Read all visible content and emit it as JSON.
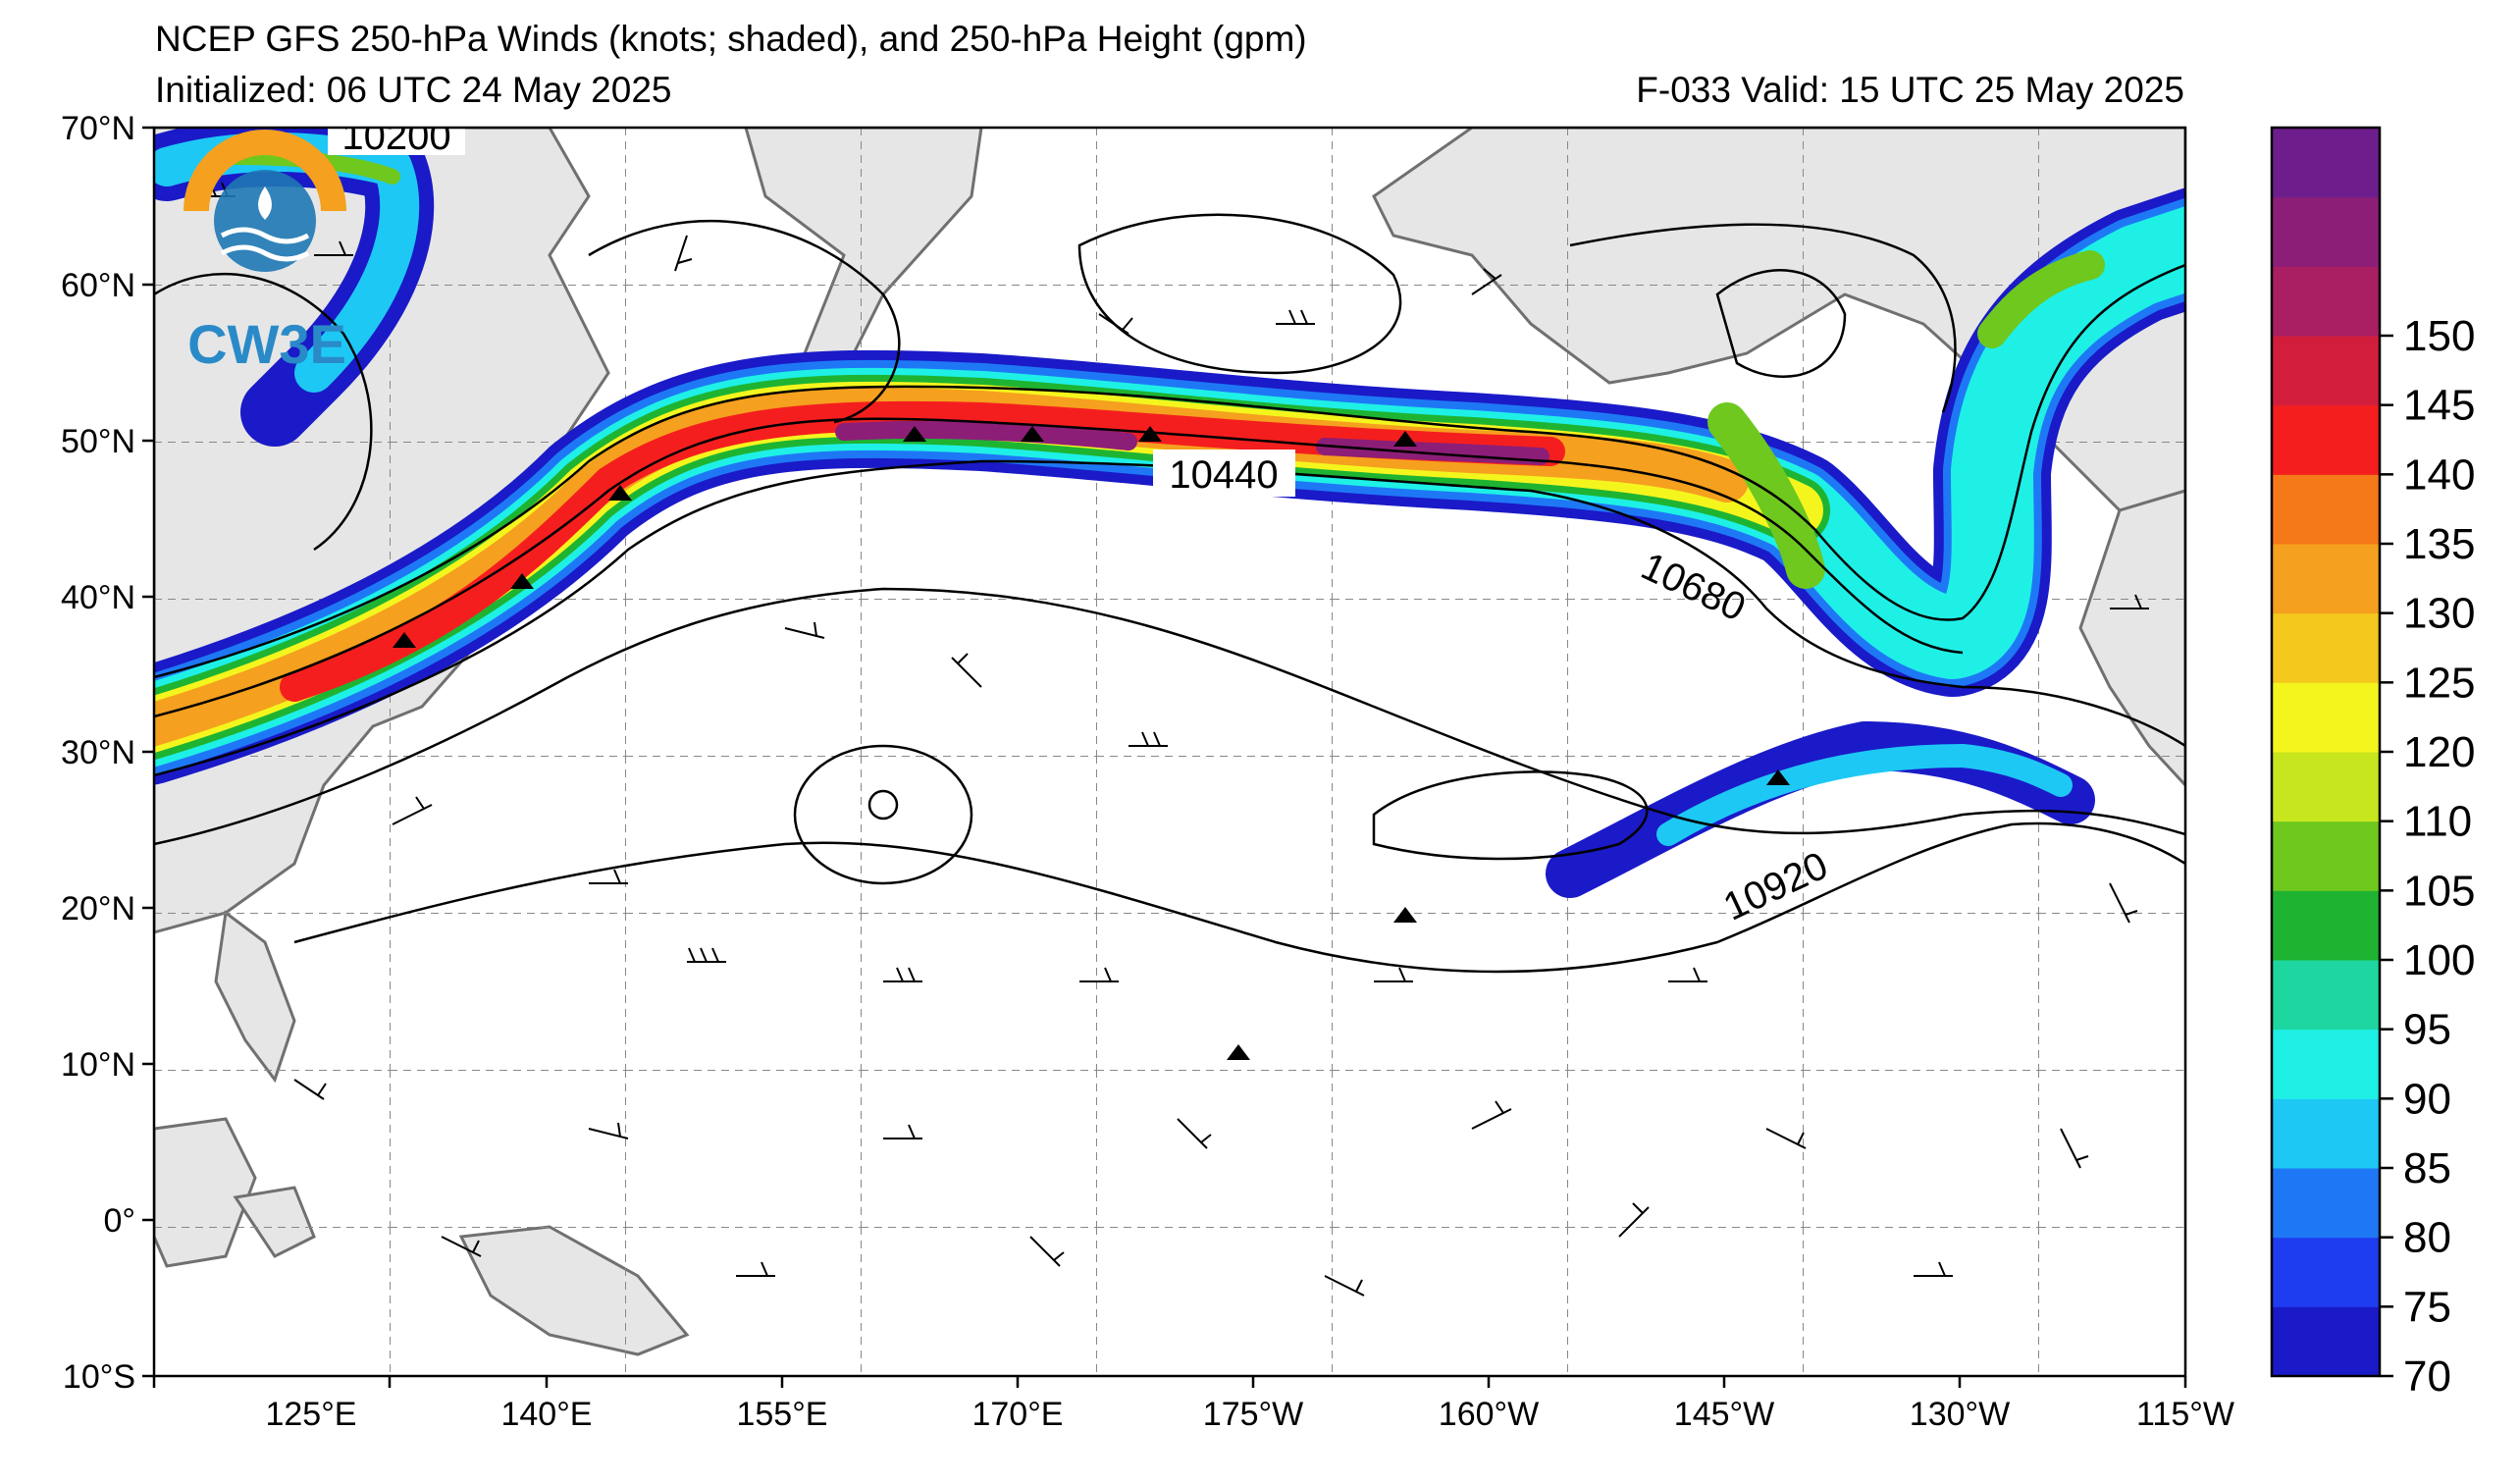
{
  "header": {
    "title": "NCEP GFS 250-hPa Winds (knots; shaded), and 250-hPa Height (gpm)",
    "initialized": "Initialized: 06 UTC 24 May 2025",
    "valid": "F-033  Valid: 15 UTC 25 May 2025"
  },
  "logo": {
    "text": "CW3E",
    "name": "cw3e-logo"
  },
  "map": {
    "lat_labels": [
      "70°N",
      "60°N",
      "50°N",
      "40°N",
      "30°N",
      "20°N",
      "10°N",
      "0°",
      "10°S"
    ],
    "lon_labels": [
      "125°E",
      "140°E",
      "155°E",
      "170°E",
      "175°W",
      "160°W",
      "145°W",
      "130°W",
      "115°W"
    ],
    "contour_labels": [
      "10200",
      "10440",
      "10680",
      "10920"
    ]
  },
  "colorbar": {
    "labels": [
      "70",
      "75",
      "80",
      "85",
      "90",
      "95",
      "100",
      "105",
      "110",
      "120",
      "125",
      "130",
      "135",
      "140",
      "145",
      "150"
    ],
    "colors": [
      "#1a1ac8",
      "#1e3cf0",
      "#1e78f5",
      "#1ec8f5",
      "#1ef0e6",
      "#1ed7a0",
      "#1eb432",
      "#6ec81e",
      "#c8e61e",
      "#f5f51e",
      "#f5c81e",
      "#f5a01e",
      "#f57819",
      "#f51e1e",
      "#d21e3c",
      "#aa1e64",
      "#8c1e78",
      "#6e1e8c"
    ]
  }
}
